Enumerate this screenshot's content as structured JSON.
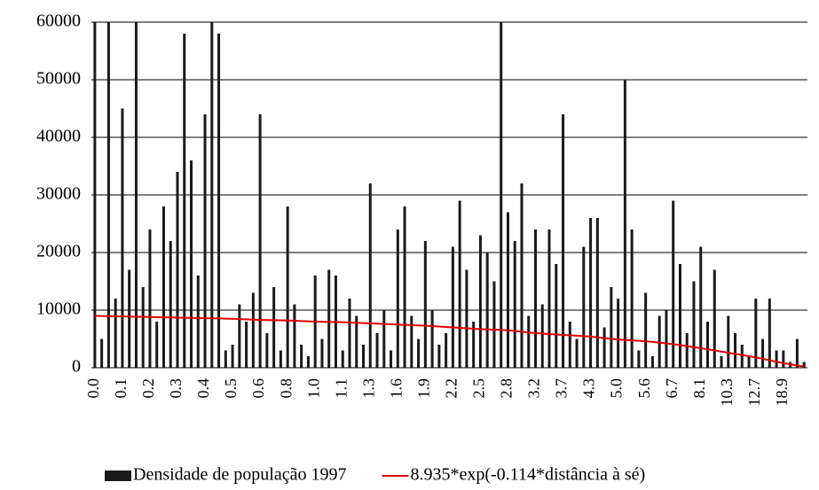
{
  "chart_data": {
    "type": "bar",
    "categories": [
      "0.0",
      null,
      null,
      null,
      "0.1",
      null,
      null,
      null,
      "0.2",
      null,
      null,
      null,
      "0.3",
      null,
      null,
      null,
      "0.4",
      null,
      null,
      null,
      "0.5",
      null,
      null,
      null,
      "0.6",
      null,
      null,
      null,
      "0.8",
      null,
      null,
      null,
      "1.0",
      null,
      null,
      null,
      "1.1",
      null,
      null,
      null,
      "1.3",
      null,
      null,
      null,
      "1.6",
      null,
      null,
      null,
      "1.9",
      null,
      null,
      null,
      "2.2",
      null,
      null,
      null,
      "2.5",
      null,
      null,
      null,
      "2.8",
      null,
      null,
      null,
      "3.2",
      null,
      null,
      null,
      "3.7",
      null,
      null,
      null,
      "4.3",
      null,
      null,
      null,
      "5.0",
      null,
      null,
      null,
      "5.6",
      null,
      null,
      null,
      "6.7",
      null,
      null,
      null,
      "8.1",
      null,
      null,
      null,
      "10.3",
      null,
      null,
      null,
      "12.7",
      null,
      null,
      null,
      "18.9",
      null,
      null,
      null
    ],
    "series": [
      {
        "name": "Densidade de população 1997",
        "type": "bar",
        "color": "#1a1a1a",
        "values": [
          60000,
          5000,
          60000,
          12000,
          45000,
          17000,
          60000,
          14000,
          24000,
          8000,
          28000,
          22000,
          34000,
          58000,
          36000,
          16000,
          44000,
          60000,
          58000,
          3000,
          4000,
          11000,
          8000,
          13000,
          44000,
          6000,
          14000,
          3000,
          28000,
          11000,
          4000,
          2000,
          16000,
          5000,
          17000,
          16000,
          3000,
          12000,
          9000,
          4000,
          32000,
          6000,
          10000,
          3000,
          24000,
          28000,
          9000,
          5000,
          22000,
          10000,
          4000,
          6000,
          21000,
          29000,
          17000,
          8000,
          23000,
          20000,
          15000,
          60000,
          27000,
          22000,
          32000,
          9000,
          24000,
          11000,
          24000,
          18000,
          44000,
          8000,
          5000,
          21000,
          26000,
          26000,
          7000,
          14000,
          12000,
          50000,
          24000,
          3000,
          13000,
          2000,
          9000,
          10000,
          29000,
          18000,
          6000,
          15000,
          21000,
          8000,
          17000,
          2000,
          9000,
          6000,
          4000,
          2000,
          12000,
          5000,
          12000,
          3000,
          3000,
          1000,
          5000,
          1000
        ]
      },
      {
        "name": "8.935*exp(-0.114*distância à sé)",
        "type": "line",
        "color": "#e00000",
        "values": [
          9000,
          8975,
          8950,
          8925,
          8900,
          8875,
          8850,
          8825,
          8800,
          8775,
          8750,
          8725,
          8700,
          8675,
          8650,
          8625,
          8600,
          8575,
          8550,
          8525,
          8500,
          8450,
          8400,
          8350,
          8300,
          8275,
          8250,
          8225,
          8200,
          8150,
          8100,
          8050,
          8000,
          7975,
          7950,
          7925,
          7900,
          7850,
          7800,
          7750,
          7700,
          7650,
          7600,
          7550,
          7500,
          7450,
          7400,
          7350,
          7300,
          7225,
          7150,
          7075,
          7000,
          6925,
          6850,
          6775,
          6700,
          6650,
          6600,
          6550,
          6500,
          6375,
          6250,
          6125,
          6000,
          5925,
          5850,
          5775,
          5700,
          5625,
          5550,
          5475,
          5400,
          5275,
          5150,
          5025,
          4900,
          4825,
          4750,
          4675,
          4600,
          4475,
          4350,
          4225,
          4100,
          3925,
          3750,
          3575,
          3400,
          3200,
          3000,
          2800,
          2600,
          2400,
          2200,
          2000,
          1800,
          1550,
          1300,
          1050,
          800,
          600,
          400,
          200
        ]
      }
    ],
    "ylim": [
      0,
      60000
    ],
    "yticks": [
      0,
      10000,
      20000,
      30000,
      40000,
      50000,
      60000
    ],
    "grid": true
  }
}
